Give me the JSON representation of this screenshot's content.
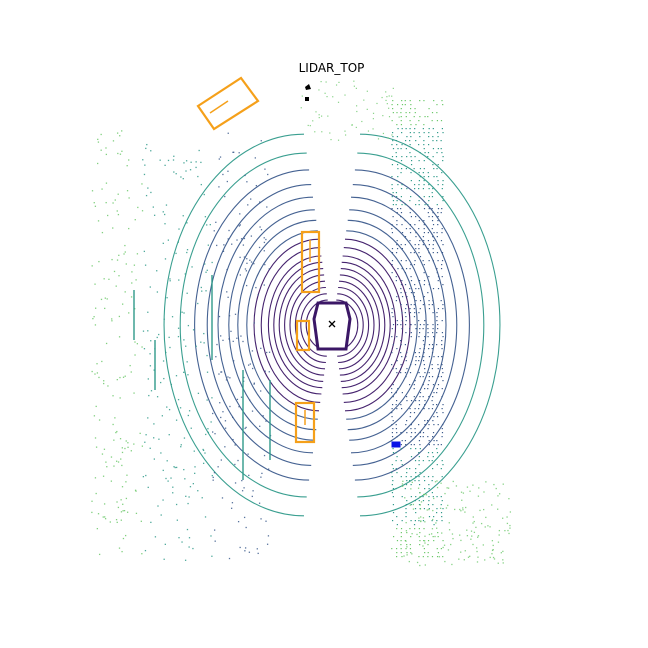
{
  "title": "LIDAR_TOP",
  "colors": {
    "box": "#f5a01a",
    "ego_marker": "#000000",
    "small_object": "#0a14e6",
    "ring_near": "#3b1766",
    "ring_mid": "#3b5a8c",
    "ring_far": "#2f9a8a",
    "far_green": "#6cc86a"
  },
  "objects": [
    {
      "name": "object-box-top-left"
    },
    {
      "name": "object-box-center-upper"
    },
    {
      "name": "object-box-center-mid"
    },
    {
      "name": "object-box-center-lower"
    },
    {
      "name": "object-small-blue"
    }
  ]
}
